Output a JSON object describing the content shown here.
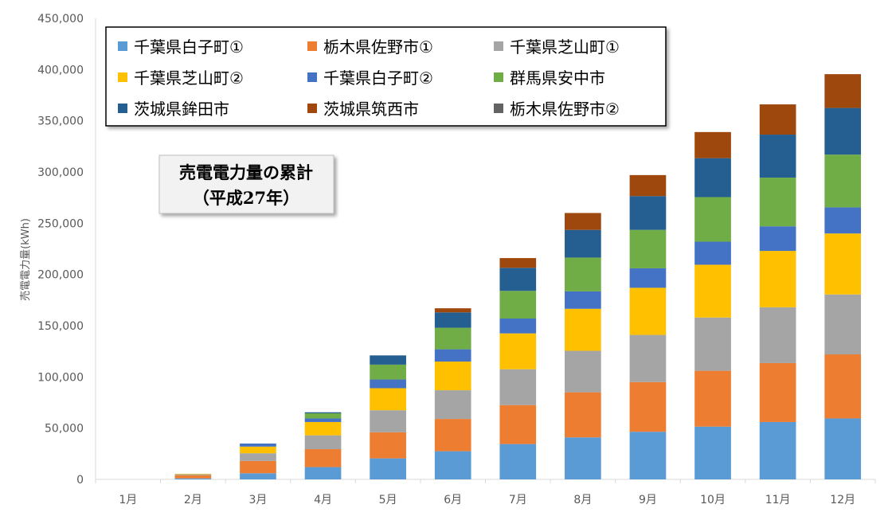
{
  "chart_data": {
    "type": "bar",
    "stacked": true,
    "title": "売電電力量の累計",
    "subtitle": "（平成27年）",
    "ylabel": "売電電力量(kWh)",
    "xlabel": "",
    "ylim": [
      0,
      450000
    ],
    "ytick_step": 50000,
    "yticks": [
      "0",
      "50,000",
      "100,000",
      "150,000",
      "200,000",
      "250,000",
      "300,000",
      "350,000",
      "400,000",
      "450,000"
    ],
    "grid": false,
    "legend_position": "top-left",
    "categories": [
      "1月",
      "2月",
      "3月",
      "4月",
      "5月",
      "6月",
      "7月",
      "8月",
      "9月",
      "10月",
      "11月",
      "12月"
    ],
    "series": [
      {
        "name": "千葉県白子町①",
        "color": "#5B9BD5",
        "values": [
          0,
          1000,
          6000,
          12000,
          20500,
          27500,
          34500,
          41000,
          46500,
          51500,
          56000,
          59500
        ]
      },
      {
        "name": "栃木県佐野市①",
        "color": "#ED7D31",
        "values": [
          0,
          3000,
          12000,
          17500,
          25500,
          31500,
          38000,
          44000,
          48500,
          54500,
          57500,
          62500
        ]
      },
      {
        "name": "千葉県芝山町①",
        "color": "#A5A5A5",
        "values": [
          0,
          1000,
          7500,
          13500,
          21500,
          28000,
          35000,
          40500,
          46000,
          52000,
          54500,
          58500
        ]
      },
      {
        "name": "千葉県芝山町②",
        "color": "#FFC000",
        "values": [
          0,
          500,
          6500,
          13000,
          21500,
          28000,
          35000,
          41000,
          46000,
          51500,
          55000,
          59500
        ]
      },
      {
        "name": "千葉県白子町②",
        "color": "#4472C4",
        "values": [
          0,
          0,
          3000,
          3500,
          8500,
          12000,
          14500,
          17000,
          19000,
          22500,
          24000,
          25500
        ]
      },
      {
        "name": "群馬県安中市",
        "color": "#70AD47",
        "values": [
          0,
          0,
          0,
          5000,
          14500,
          21000,
          27000,
          33000,
          37500,
          43500,
          47500,
          51500
        ]
      },
      {
        "name": "茨城県鉾田市",
        "color": "#255E91",
        "values": [
          0,
          0,
          0,
          1000,
          9000,
          15000,
          22500,
          27000,
          33000,
          38000,
          42000,
          45500
        ]
      },
      {
        "name": "茨城県筑西市",
        "color": "#9E480E",
        "values": [
          0,
          0,
          0,
          0,
          0,
          4000,
          9500,
          16500,
          20500,
          25500,
          29500,
          33000
        ]
      },
      {
        "name": "栃木県佐野市②",
        "color": "#636363",
        "values": [
          0,
          0,
          0,
          0,
          0,
          0,
          0,
          0,
          0,
          0,
          0,
          0
        ]
      }
    ]
  }
}
